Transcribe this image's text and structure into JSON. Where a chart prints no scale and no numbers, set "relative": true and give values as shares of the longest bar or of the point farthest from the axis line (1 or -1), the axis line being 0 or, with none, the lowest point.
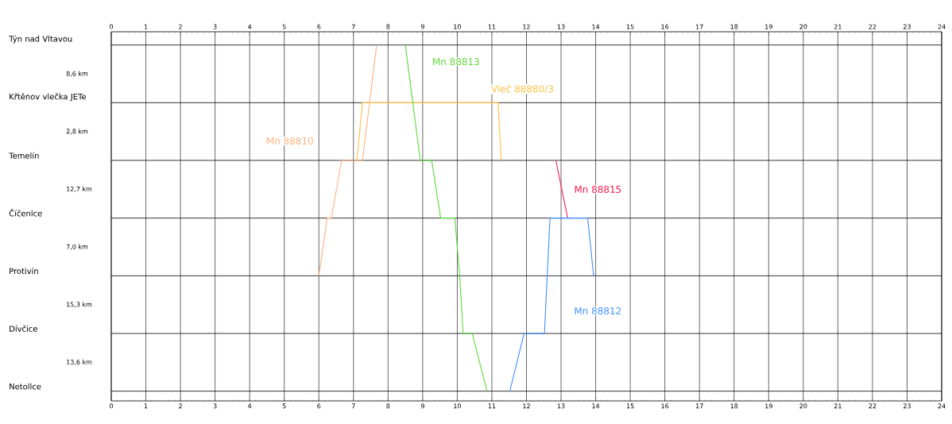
{
  "chart_data": {
    "type": "line",
    "relative": true,
    "xlim": [
      0,
      24
    ],
    "xticks": [
      0,
      1,
      2,
      3,
      4,
      5,
      6,
      7,
      8,
      9,
      10,
      11,
      12,
      13,
      14,
      15,
      16,
      17,
      18,
      19,
      20,
      21,
      22,
      23,
      24
    ],
    "x2lim": [
      0,
      24
    ],
    "x2ticks": [
      0,
      1,
      2,
      3,
      4,
      5,
      6,
      7,
      8,
      9,
      10,
      11,
      12,
      13,
      14,
      15,
      16,
      17,
      18,
      19,
      20,
      21,
      22,
      23,
      24
    ],
    "annotations": [
      "Týn nad Vltavou",
      "8,6 km",
      "Křtěnov vlečka JETe",
      "2,8 km",
      "Temelín",
      "12,7 km",
      "Číčenlce",
      "7,0 km",
      "Protivín",
      "15,3 km",
      "Dívčice",
      "13,6 km",
      "Netollce"
    ],
    "grid": "x",
    "legend": false,
    "marker": "none",
    "line_style": "solid",
    "ref_lines": [
      {
        "axis": "y",
        "value": 1
      },
      {
        "axis": "y",
        "value": 0.8333
      },
      {
        "axis": "y",
        "value": 0.6667
      },
      {
        "axis": "y",
        "value": 0.5
      },
      {
        "axis": "y",
        "value": 0.3333
      },
      {
        "axis": "y",
        "value": 0.1667
      },
      {
        "axis": "y",
        "value": 0
      }
    ],
    "series": [
      {
        "name": "Mn 88810",
        "color": "#ffb27f",
        "x": [
          6.0,
          6.24,
          6.36,
          6.66,
          7.26,
          7.67
        ],
        "values": [
          0.3333,
          0.5,
          0.5,
          0.6667,
          0.6667,
          1
        ]
      },
      {
        "name": "Vleč 88880/3",
        "color": "#ffbf40",
        "x": [
          7.1,
          7.26,
          11.18,
          11.27
        ],
        "values": [
          0.6667,
          0.8333,
          0.8333,
          0.6667
        ]
      },
      {
        "name": "Mn 88813",
        "color": "#5cd93a",
        "x": [
          8.5,
          8.93,
          9.26,
          9.52,
          9.93,
          10.07,
          10.17,
          10.43,
          10.86
        ],
        "values": [
          1,
          0.6667,
          0.6667,
          0.5,
          0.5,
          0.3333,
          0.1667,
          0.1667,
          0
        ]
      },
      {
        "name": "Mn 88815",
        "color": "#ff1a4d",
        "x": [
          12.85,
          13.19
        ],
        "values": [
          0.6667,
          0.5
        ]
      },
      {
        "name": "Mn 88812",
        "color": "#3f8fff",
        "x": [
          11.52,
          11.93,
          12.52,
          12.68,
          13.77,
          13.94
        ],
        "values": [
          0,
          0.1667,
          0.1667,
          0.5,
          0.5,
          0.3333
        ]
      }
    ]
  }
}
